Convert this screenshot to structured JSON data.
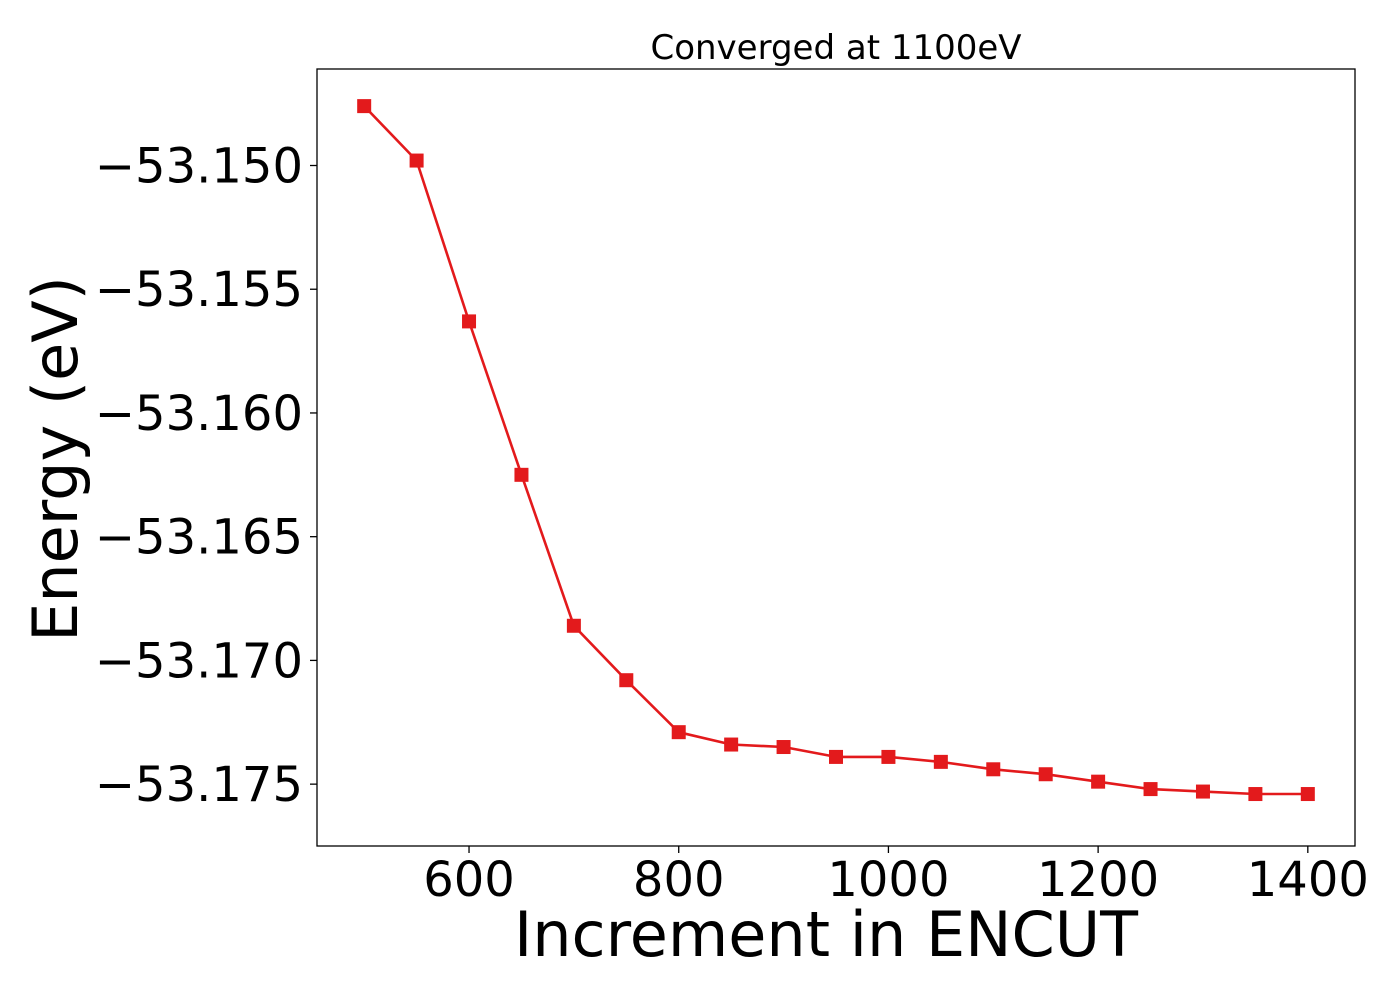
{
  "chart_data": {
    "type": "line",
    "title": "Converged at 1100eV",
    "xlabel": "Increment in ENCUT",
    "ylabel": "Energy (eV)",
    "xlim": [
      455,
      1445
    ],
    "ylim": [
      -53.1775,
      -53.1461
    ],
    "xticks": [
      600,
      800,
      1000,
      1200,
      1400
    ],
    "xtick_labels": [
      "600",
      "800",
      "1000",
      "1200",
      "1400"
    ],
    "yticks": [
      -53.15,
      -53.155,
      -53.16,
      -53.165,
      -53.17,
      -53.175
    ],
    "ytick_labels": [
      "−53.150",
      "−53.155",
      "−53.160",
      "−53.165",
      "−53.170",
      "−53.175"
    ],
    "grid": false,
    "series": [
      {
        "color": "#e31a1c",
        "marker": "square",
        "x": [
          500,
          550,
          600,
          650,
          700,
          750,
          800,
          850,
          900,
          950,
          1000,
          1050,
          1100,
          1150,
          1200,
          1250,
          1300,
          1350,
          1400
        ],
        "y": [
          -53.1476,
          -53.1498,
          -53.1563,
          -53.1625,
          -53.1686,
          -53.1708,
          -53.1729,
          -53.1734,
          -53.1735,
          -53.1739,
          -53.1739,
          -53.1741,
          -53.1744,
          -53.1746,
          -53.1749,
          -53.1752,
          -53.1753,
          -53.1754,
          -53.1754
        ]
      }
    ]
  }
}
